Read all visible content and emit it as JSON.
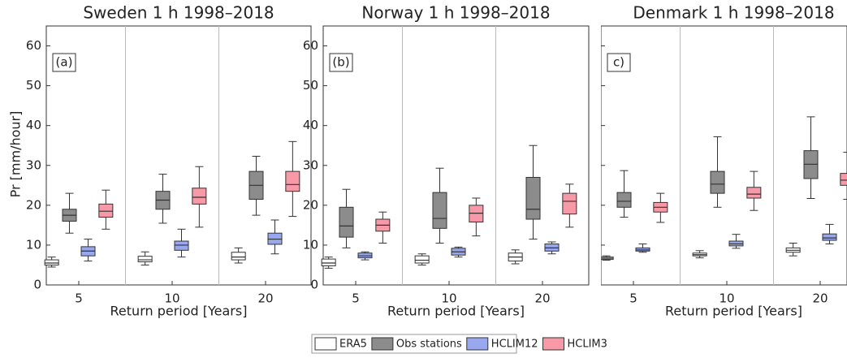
{
  "legend": [
    {
      "name": "ERA5",
      "color": "#ffffff"
    },
    {
      "name": "Obs stations",
      "color": "#8c8c8c"
    },
    {
      "name": "HCLIM12",
      "color": "#97a8f0"
    },
    {
      "name": "HCLIM3",
      "color": "#f799a6"
    }
  ],
  "chart_data": [
    {
      "type": "box",
      "title": "Sweden 1 h 1998–2018",
      "panel_label": "(a)",
      "ylabel": "Pr [mm/hour]",
      "xlabel": "Return period [Years]",
      "categories": [
        "5",
        "10",
        "20"
      ],
      "ylim": [
        0,
        65
      ],
      "yticks": [
        0,
        10,
        20,
        30,
        40,
        50,
        60
      ],
      "series": [
        {
          "values": [
            [
              4.5,
              5,
              5.5,
              6.3,
              7
            ],
            [
              5,
              5.8,
              6.3,
              7.2,
              8.3
            ],
            [
              5.5,
              6.3,
              7,
              8.2,
              9.3
            ]
          ]
        },
        {
          "values": [
            [
              13,
              16,
              17.5,
              19,
              23
            ],
            [
              15.5,
              19,
              21.3,
              23.5,
              27.8
            ],
            [
              17.5,
              21.5,
              25,
              28.5,
              32.3
            ]
          ]
        },
        {
          "values": [
            [
              6,
              7.3,
              8.5,
              9.6,
              11.5
            ],
            [
              7,
              8.7,
              10,
              11,
              14
            ],
            [
              7.8,
              10.2,
              11.5,
              13,
              16.3
            ]
          ]
        },
        {
          "values": [
            [
              14,
              17,
              18.5,
              20.3,
              23.8
            ],
            [
              14.5,
              20.3,
              22,
              24.3,
              29.7
            ],
            [
              17.2,
              23.5,
              25.2,
              28.5,
              36
            ]
          ]
        }
      ]
    },
    {
      "type": "box",
      "title": "Norway 1 h 1998–2018",
      "panel_label": "(b)",
      "xlabel": "Return period [Years]",
      "categories": [
        "5",
        "10",
        "20"
      ],
      "ylim": [
        0,
        65
      ],
      "yticks": [
        0,
        10,
        20,
        30,
        40,
        50,
        60
      ],
      "series": [
        {
          "values": [
            [
              4.2,
              4.8,
              5.5,
              6.5,
              7
            ],
            [
              5,
              5.5,
              6.2,
              7.3,
              7.8
            ],
            [
              5.3,
              6,
              7,
              8,
              8.8
            ]
          ]
        },
        {
          "values": [
            [
              9.3,
              12,
              14.8,
              19.5,
              24
            ],
            [
              10.5,
              14.2,
              16.7,
              23.2,
              29.3
            ],
            [
              11.5,
              16.5,
              19,
              27,
              35
            ]
          ]
        },
        {
          "values": [
            [
              6.3,
              6.8,
              7.3,
              8,
              8.3
            ],
            [
              7,
              7.5,
              8.3,
              9.2,
              9.5
            ],
            [
              7.8,
              8.5,
              9.3,
              10.3,
              10.8
            ]
          ]
        },
        {
          "values": [
            [
              10.5,
              13.5,
              15,
              16.5,
              18.3
            ],
            [
              12.3,
              15.8,
              18,
              20,
              21.8
            ],
            [
              14.5,
              17.8,
              21,
              23,
              25.3
            ]
          ]
        }
      ]
    },
    {
      "type": "box",
      "title": "Denmark 1 h 1998–2018",
      "panel_label": "c)",
      "xlabel": "Return period [Years]",
      "categories": [
        "5",
        "10",
        "20"
      ],
      "ylim": [
        0,
        65
      ],
      "yticks": [
        0,
        10,
        20,
        30,
        40,
        50,
        60
      ],
      "series": [
        {
          "values": [
            [
              6.2,
              6.4,
              6.7,
              7,
              7.3
            ],
            [
              6.8,
              7.3,
              7.6,
              8,
              8.6
            ],
            [
              7.3,
              8.2,
              8.7,
              9.3,
              10.5
            ]
          ]
        },
        {
          "values": [
            [
              17,
              19.5,
              21,
              23.2,
              28.7
            ],
            [
              19.5,
              23,
              25.3,
              28.5,
              37.2
            ],
            [
              21.7,
              26.7,
              30.3,
              33.7,
              42.2
            ]
          ]
        },
        {
          "values": [
            [
              8.2,
              8.5,
              8.8,
              9.3,
              10.3
            ],
            [
              9.2,
              9.8,
              10.3,
              11,
              12.7
            ],
            [
              10.3,
              11.2,
              11.8,
              12.8,
              15.2
            ]
          ]
        },
        {
          "values": [
            [
              15.7,
              18.3,
              19.5,
              20.7,
              23
            ],
            [
              18.7,
              21.8,
              22.8,
              24.5,
              28.5
            ],
            [
              21.5,
              25,
              26.3,
              28,
              33.3
            ]
          ]
        }
      ]
    }
  ]
}
